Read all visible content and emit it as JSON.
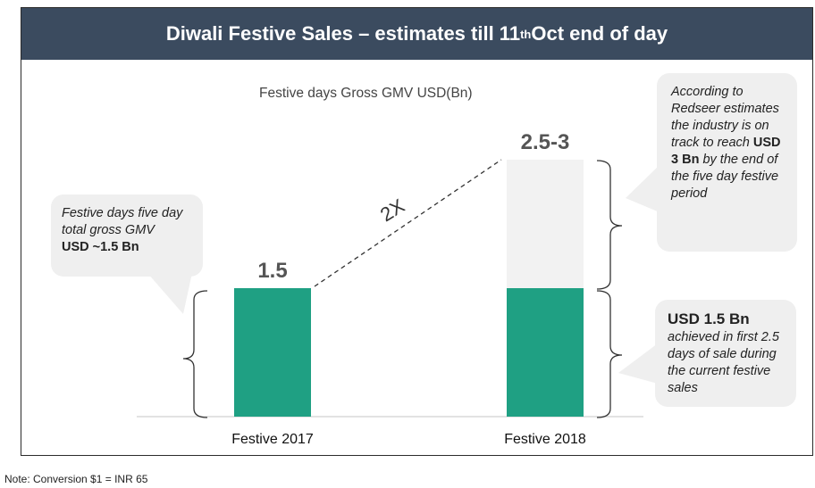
{
  "header": {
    "title_main": "Diwali Festive Sales – estimates till 11",
    "title_sup": "th",
    "title_end": " Oct end of day"
  },
  "chart_data": {
    "type": "bar",
    "subtitle": "Festive days Gross GMV USD(Bn)",
    "categories": [
      "Festive 2017",
      "Festive 2018"
    ],
    "series": [
      {
        "values": [
          1.5,
          1.5
        ]
      },
      {
        "values": [
          0,
          1.5
        ]
      }
    ],
    "data_labels": [
      "1.5",
      "2.5-3"
    ],
    "growth_label": "2X",
    "ylim": [
      0,
      3.0
    ],
    "colors": {
      "achieved": "#1fa083",
      "estimate": "#f2f2f2"
    }
  },
  "callouts": {
    "left": {
      "text": "Festive days five day total gross GMV",
      "bold": "USD ~1.5 Bn"
    },
    "right_top": {
      "text_before": "According to Redseer estimates the industry is on track to reach",
      "bold": "USD 3 Bn",
      "text_after": "by the end of the five day festive period"
    },
    "right_bottom": {
      "bold": "USD 1.5 Bn",
      "text": "achieved in first 2.5 days of sale during the current festive sales"
    }
  },
  "note": "Note: Conversion $1 = INR 65"
}
